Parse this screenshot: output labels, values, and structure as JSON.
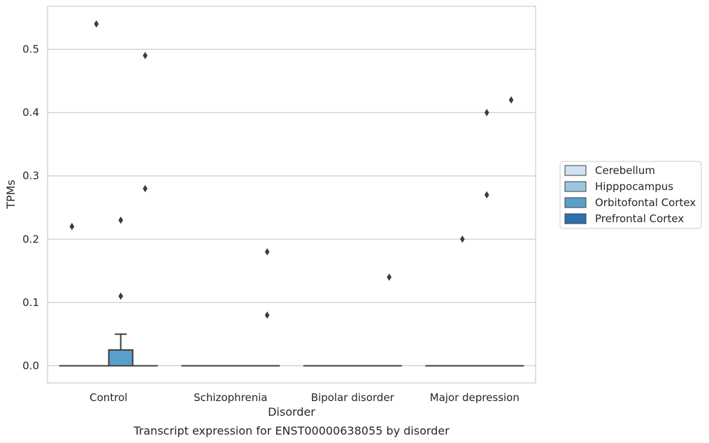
{
  "chart_data": {
    "type": "box",
    "xlabel": "Disorder",
    "ylabel": "TPMs",
    "caption": "Transcript expression for ENST00000638055 by disorder",
    "categories": [
      "Control",
      "Schizophrenia",
      "Bipolar disorder",
      "Major depression"
    ],
    "yticks": [
      0.0,
      0.1,
      0.2,
      0.3,
      0.4,
      0.5
    ],
    "ylim": [
      -0.027,
      0.568
    ],
    "grid": true,
    "legend_position": "right",
    "series": [
      {
        "name": "Cerebellum",
        "color": "#d1e2f2",
        "boxes": [
          {
            "q1": 0,
            "median": 0,
            "q3": 0,
            "whisker_low": 0,
            "whisker_high": 0,
            "outliers": [
              0.22
            ]
          },
          {
            "q1": 0,
            "median": 0,
            "q3": 0,
            "whisker_low": 0,
            "whisker_high": 0,
            "outliers": []
          },
          {
            "q1": 0,
            "median": 0,
            "q3": 0,
            "whisker_low": 0,
            "whisker_high": 0,
            "outliers": []
          },
          {
            "q1": 0,
            "median": 0,
            "q3": 0,
            "whisker_low": 0,
            "whisker_high": 0,
            "outliers": []
          }
        ]
      },
      {
        "name": "Hipppocampus",
        "color": "#9ac8e0",
        "boxes": [
          {
            "q1": 0,
            "median": 0,
            "q3": 0,
            "whisker_low": 0,
            "whisker_high": 0,
            "outliers": [
              0.54
            ]
          },
          {
            "q1": 0,
            "median": 0,
            "q3": 0,
            "whisker_low": 0,
            "whisker_high": 0,
            "outliers": []
          },
          {
            "q1": 0,
            "median": 0,
            "q3": 0,
            "whisker_low": 0,
            "whisker_high": 0,
            "outliers": []
          },
          {
            "q1": 0,
            "median": 0,
            "q3": 0,
            "whisker_low": 0,
            "whisker_high": 0,
            "outliers": [
              0.2
            ]
          }
        ]
      },
      {
        "name": "Orbitofontal Cortex",
        "color": "#5a9fcb",
        "boxes": [
          {
            "q1": 0,
            "median": 0,
            "q3": 0.025,
            "whisker_low": 0,
            "whisker_high": 0.05,
            "outliers": [
              0.11,
              0.23
            ]
          },
          {
            "q1": 0,
            "median": 0,
            "q3": 0,
            "whisker_low": 0,
            "whisker_high": 0,
            "outliers": []
          },
          {
            "q1": 0,
            "median": 0,
            "q3": 0,
            "whisker_low": 0,
            "whisker_high": 0,
            "outliers": []
          },
          {
            "q1": 0,
            "median": 0,
            "q3": 0,
            "whisker_low": 0,
            "whisker_high": 0,
            "outliers": [
              0.4,
              0.27
            ]
          }
        ]
      },
      {
        "name": "Prefrontal Cortex",
        "color": "#2e6fad",
        "boxes": [
          {
            "q1": 0,
            "median": 0,
            "q3": 0,
            "whisker_low": 0,
            "whisker_high": 0,
            "outliers": [
              0.49,
              0.28
            ]
          },
          {
            "q1": 0,
            "median": 0,
            "q3": 0,
            "whisker_low": 0,
            "whisker_high": 0,
            "outliers": [
              0.18,
              0.08
            ]
          },
          {
            "q1": 0,
            "median": 0,
            "q3": 0,
            "whisker_low": 0,
            "whisker_high": 0,
            "outliers": [
              0.14
            ]
          },
          {
            "q1": 0,
            "median": 0,
            "q3": 0,
            "whisker_low": 0,
            "whisker_high": 0,
            "outliers": [
              0.42
            ]
          }
        ]
      }
    ]
  }
}
